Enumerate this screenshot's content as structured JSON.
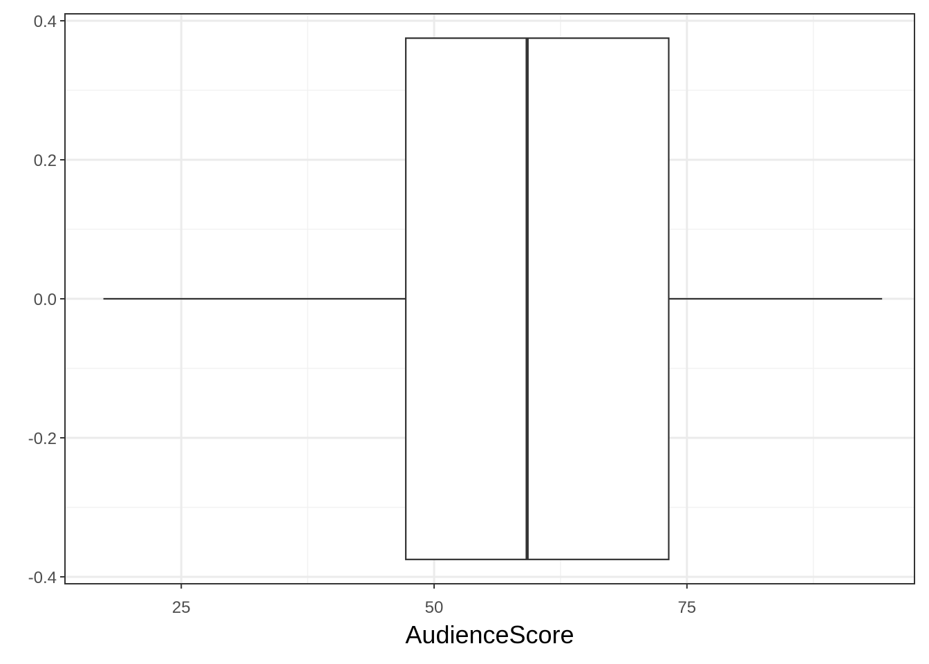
{
  "chart_data": {
    "type": "boxplot",
    "orientation": "horizontal",
    "title": "",
    "xlabel": "AudienceScore",
    "ylabel": "",
    "xlim": [
      13.5,
      97.5
    ],
    "ylim": [
      -0.41,
      0.41
    ],
    "x_ticks": [
      25,
      50,
      75
    ],
    "x_tick_labels": [
      "25",
      "50",
      "75"
    ],
    "x_minor_gridlines": [
      37.5,
      62.5,
      87.5
    ],
    "y_ticks": [
      -0.4,
      -0.2,
      0.0,
      0.2,
      0.4
    ],
    "y_tick_labels": [
      "-0.4",
      "-0.2",
      "0.0",
      "0.2",
      "0.4"
    ],
    "y_minor_gridlines": [
      -0.3,
      -0.1,
      0.1,
      0.3
    ],
    "grid": true,
    "box": {
      "whisker_low": 17.3,
      "q1": 47.2,
      "median": 59.2,
      "q3": 73.2,
      "whisker_high": 94.3,
      "y_center": 0.0,
      "half_height": 0.375
    },
    "colors": {
      "panel_border": "#333333",
      "grid_major": "#ebebeb",
      "grid_minor": "#f2f2f2",
      "box_stroke": "#333333",
      "box_fill": "#ffffff"
    }
  }
}
